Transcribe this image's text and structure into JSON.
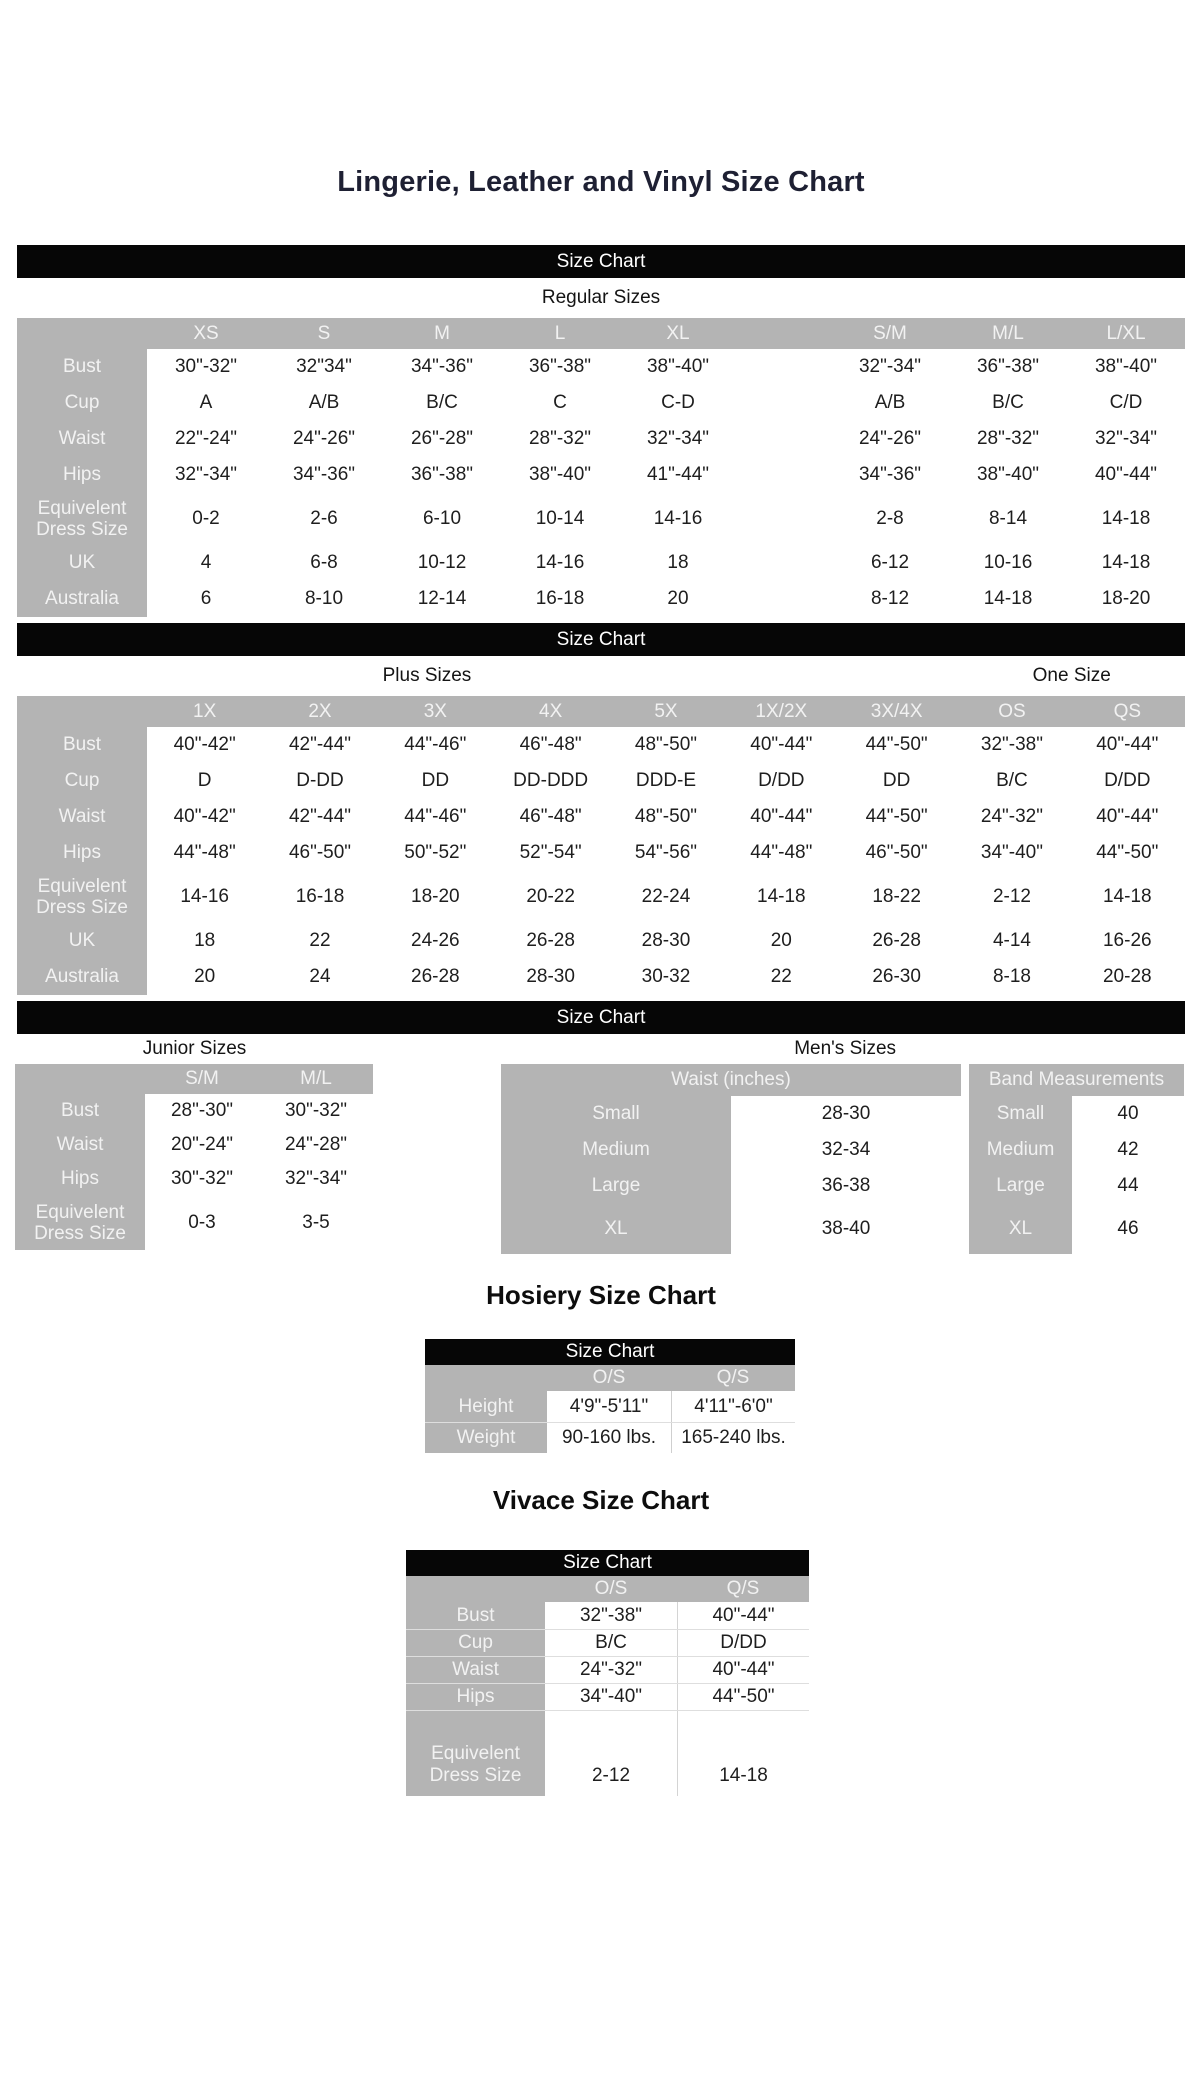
{
  "page_title": "Lingerie, Leather and Vinyl Size Chart",
  "section_titles": {
    "hosiery": "Hosiery Size Chart",
    "vivace": "Vivace Size Chart"
  },
  "bars": {
    "size_chart": "Size Chart"
  },
  "sections": {
    "regular": "Regular Sizes",
    "plus": "Plus Sizes",
    "one_size": "One Size",
    "junior": "Junior Sizes",
    "mens": "Men's Sizes"
  },
  "colors": {
    "bar_bg": "#060606",
    "bar_text": "#ffffff",
    "header_gray": "#b4b4b4",
    "gray_text": "#f2f2f2",
    "data_text": "#1e1e1e",
    "title_text": "#1e2033"
  },
  "tables": {
    "regular": {
      "cols": [
        "XS",
        "S",
        "M",
        "L",
        "XL",
        "S/M",
        "M/L",
        "L/XL"
      ],
      "rows": [
        {
          "label": "Bust",
          "cells": [
            "30\"-32\"",
            "32\"34\"",
            "34\"-36\"",
            "36\"-38\"",
            "38\"-40\"",
            "32\"-34\"",
            "36\"-38\"",
            "38\"-40\""
          ]
        },
        {
          "label": "Cup",
          "cells": [
            "A",
            "A/B",
            "B/C",
            "C",
            "C-D",
            "A/B",
            "B/C",
            "C/D"
          ]
        },
        {
          "label": "Waist",
          "cells": [
            "22\"-24\"",
            "24\"-26\"",
            "26\"-28\"",
            "28\"-32\"",
            "32\"-34\"",
            "24\"-26\"",
            "28\"-32\"",
            "32\"-34\""
          ]
        },
        {
          "label": "Hips",
          "cells": [
            "32\"-34\"",
            "34\"-36\"",
            "36\"-38\"",
            "38\"-40\"",
            "41\"-44\"",
            "34\"-36\"",
            "38\"-40\"",
            "40\"-44\""
          ]
        },
        {
          "label": "Equivelent Dress Size",
          "cells": [
            "0-2",
            "2-6",
            "6-10",
            "10-14",
            "14-16",
            "2-8",
            "8-14",
            "14-18"
          ]
        },
        {
          "label": "UK",
          "cells": [
            "4",
            "6-8",
            "10-12",
            "14-16",
            "18",
            "6-12",
            "10-16",
            "14-18"
          ]
        },
        {
          "label": "Australia",
          "cells": [
            "6",
            "8-10",
            "12-14",
            "16-18",
            "20",
            "8-12",
            "14-18",
            "18-20"
          ]
        }
      ]
    },
    "plus": {
      "cols": [
        "1X",
        "2X",
        "3X",
        "4X",
        "5X",
        "1X/2X",
        "3X/4X",
        "OS",
        "QS"
      ],
      "rows": [
        {
          "label": "Bust",
          "cells": [
            "40\"-42\"",
            "42\"-44\"",
            "44\"-46\"",
            "46\"-48\"",
            "48\"-50\"",
            "40\"-44\"",
            "44\"-50\"",
            "32\"-38\"",
            "40\"-44\""
          ]
        },
        {
          "label": "Cup",
          "cells": [
            "D",
            "D-DD",
            "DD",
            "DD-DDD",
            "DDD-E",
            "D/DD",
            "DD",
            "B/C",
            "D/DD"
          ]
        },
        {
          "label": "Waist",
          "cells": [
            "40\"-42\"",
            "42\"-44\"",
            "44\"-46\"",
            "46\"-48\"",
            "48\"-50\"",
            "40\"-44\"",
            "44\"-50\"",
            "24\"-32\"",
            "40\"-44\""
          ]
        },
        {
          "label": "Hips",
          "cells": [
            "44\"-48\"",
            "46\"-50\"",
            "50\"-52\"",
            "52\"-54\"",
            "54\"-56\"",
            "44\"-48\"",
            "46\"-50\"",
            "34\"-40\"",
            "44\"-50\""
          ]
        },
        {
          "label": "Equivelent Dress Size",
          "cells": [
            "14-16",
            "16-18",
            "18-20",
            "20-22",
            "22-24",
            "14-18",
            "18-22",
            "2-12",
            "14-18"
          ]
        },
        {
          "label": "UK",
          "cells": [
            "18",
            "22",
            "24-26",
            "26-28",
            "28-30",
            "20",
            "26-28",
            "4-14",
            "16-26"
          ]
        },
        {
          "label": "Australia",
          "cells": [
            "20",
            "24",
            "26-28",
            "28-30",
            "30-32",
            "22",
            "26-30",
            "8-18",
            "20-28"
          ]
        }
      ]
    },
    "junior": {
      "cols": [
        "S/M",
        "M/L"
      ],
      "rows": [
        {
          "label": "Bust",
          "cells": [
            "28\"-30\"",
            "30\"-32\""
          ]
        },
        {
          "label": "Waist",
          "cells": [
            "20\"-24\"",
            "24\"-28\""
          ]
        },
        {
          "label": "Hips",
          "cells": [
            "30\"-32\"",
            "32\"-34\""
          ]
        },
        {
          "label": "Equivelent Dress Size",
          "cells": [
            "0-3",
            "3-5"
          ]
        }
      ]
    },
    "mens_waist": {
      "header": "Waist (inches)",
      "rows": [
        {
          "label": "Small",
          "cells": [
            "28-30"
          ]
        },
        {
          "label": "Medium",
          "cells": [
            "32-34"
          ]
        },
        {
          "label": "Large",
          "cells": [
            "36-38"
          ]
        },
        {
          "label": "XL",
          "cells": [
            "38-40"
          ]
        }
      ]
    },
    "mens_band": {
      "header": "Band Measurements",
      "rows": [
        {
          "label": "Small",
          "cells": [
            "40"
          ]
        },
        {
          "label": "Medium",
          "cells": [
            "42"
          ]
        },
        {
          "label": "Large",
          "cells": [
            "44"
          ]
        },
        {
          "label": "XL",
          "cells": [
            "46"
          ]
        }
      ]
    },
    "hosiery": {
      "cols": [
        "O/S",
        "Q/S"
      ],
      "rows": [
        {
          "label": "Height",
          "cells": [
            "4'9\"-5'11\"",
            "4'11\"-6'0\""
          ]
        },
        {
          "label": "Weight",
          "cells": [
            "90-160 lbs.",
            "165-240 lbs."
          ]
        }
      ]
    },
    "vivace": {
      "cols": [
        "O/S",
        "Q/S"
      ],
      "rows": [
        {
          "label": "Bust",
          "cells": [
            "32\"-38\"",
            "40\"-44\""
          ]
        },
        {
          "label": "Cup",
          "cells": [
            "B/C",
            "D/DD"
          ]
        },
        {
          "label": "Waist",
          "cells": [
            "24\"-32\"",
            "40\"-44\""
          ]
        },
        {
          "label": "Hips",
          "cells": [
            "34\"-40\"",
            "44\"-50\""
          ]
        },
        {
          "label": "Equivelent Dress Size",
          "cells": [
            "2-12",
            "14-18"
          ]
        }
      ]
    }
  }
}
